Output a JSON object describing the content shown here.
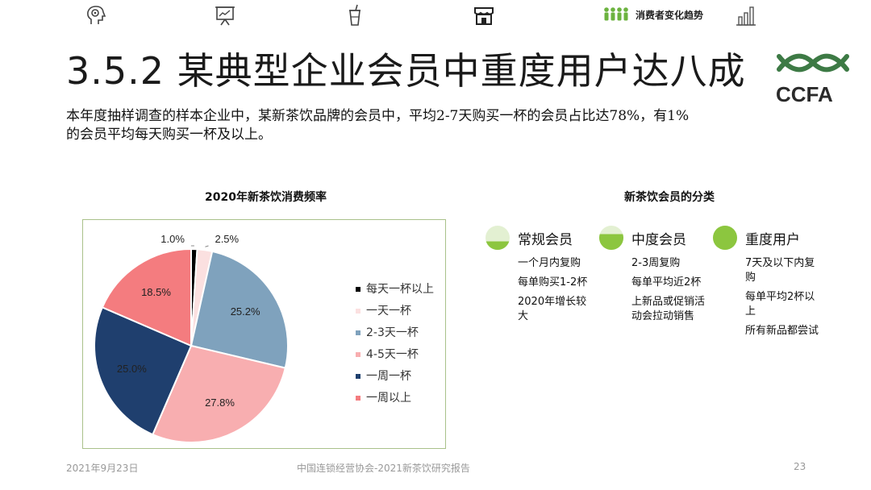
{
  "nav": {
    "items": [
      {
        "icon": "brain-gear-icon"
      },
      {
        "icon": "presentation-board-icon"
      },
      {
        "icon": "drink-cup-icon"
      },
      {
        "icon": "storefront-icon"
      },
      {
        "icon": "people-group-icon",
        "label": "消费者变化趋势",
        "active": true
      },
      {
        "icon": "bar-chart-icon"
      }
    ]
  },
  "title": "3.5.2 某典型企业会员中重度用户达八成",
  "logo": {
    "text": "CCFA",
    "color": "#3d7a45"
  },
  "subtitle": "本年度抽样调查的样本企业中，某新茶饮品牌的会员中，平均2-7天购买一杯的会员占比达78%，有1%的会员平均每天购买一杯及以上。",
  "chart_data": {
    "type": "pie",
    "title": "2020年新茶饮消费频率",
    "legend_position": "right",
    "slices": [
      {
        "label": "每天一杯以上",
        "value": 1.0,
        "display": "1.0%",
        "color": "#000000"
      },
      {
        "label": "一天一杯",
        "value": 2.5,
        "display": "2.5%",
        "color": "#fbe0e0"
      },
      {
        "label": "2-3天一杯",
        "value": 25.2,
        "display": "25.2%",
        "color": "#7fa2bd"
      },
      {
        "label": "4-5天一杯",
        "value": 27.8,
        "display": "27.8%",
        "color": "#f8aeb0"
      },
      {
        "label": "一周一杯",
        "value": 25.0,
        "display": "25.0%",
        "color": "#1f3f6e"
      },
      {
        "label": "一周以上",
        "value": 18.5,
        "display": "18.5%",
        "color": "#f47c7f"
      }
    ]
  },
  "classification": {
    "title": "新茶饮会员的分类",
    "accent": "#8cc63f",
    "groups": [
      {
        "name": "常规会员",
        "fill": 0.35,
        "items": [
          "一个月内复购",
          "每单购买1-2杯",
          "2020年增长较大"
        ]
      },
      {
        "name": "中度会员",
        "fill": 0.65,
        "items": [
          "2-3周复购",
          "每单平均近2杯",
          "上新品或促销活动会拉动销售"
        ]
      },
      {
        "name": "重度用户",
        "fill": 1.0,
        "items": [
          "7天及以下内复购",
          "每单平均2杯以上",
          "所有新品都尝试"
        ]
      }
    ]
  },
  "footer": {
    "date": "2021年9月23日",
    "org": "中国连锁经营协会-2021新茶饮研究报告",
    "page": "23"
  }
}
